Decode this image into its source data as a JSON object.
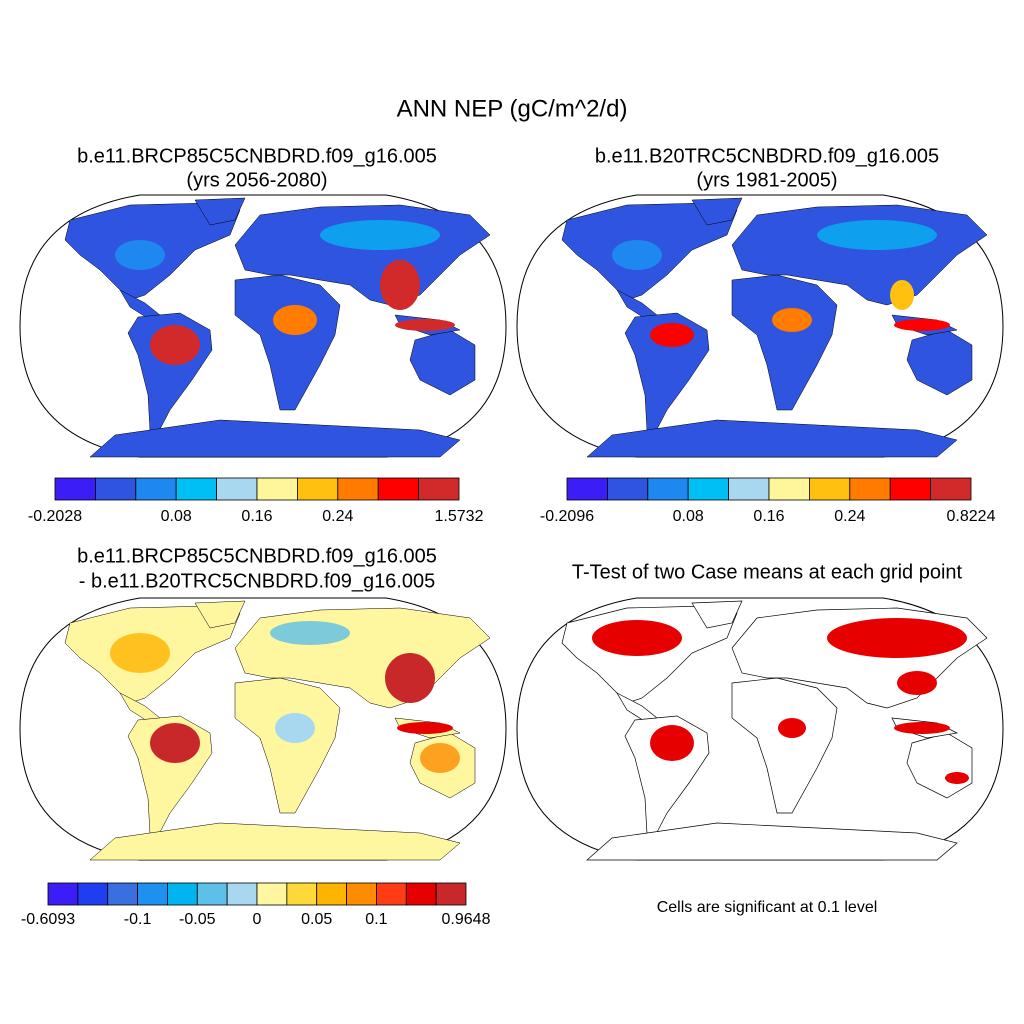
{
  "title": "ANN NEP (gC/m^2/d)",
  "panels": [
    {
      "title": [
        "b.e11.BRCP85C5CNBDRD.f09_g16.005",
        "(yrs 2056-2080)"
      ],
      "colorbar": {
        "colors": [
          "#3b1ef5",
          "#2f55e0",
          "#1e87f0",
          "#00bff5",
          "#a8d8ef",
          "#fff59a",
          "#ffc010",
          "#ff7c00",
          "#ff0000",
          "#d22a2a"
        ],
        "labels": [
          "-0.2028",
          null,
          null,
          "0.08",
          null,
          "0.16",
          null,
          "0.24",
          null,
          null,
          "1.5732"
        ]
      }
    },
    {
      "title": [
        "b.e11.B20TRC5CNBDRD.f09_g16.005",
        "(yrs 1981-2005)"
      ],
      "colorbar": {
        "colors": [
          "#3b1ef5",
          "#2f55e0",
          "#1e87f0",
          "#00bff5",
          "#a8d8ef",
          "#fff59a",
          "#ffc010",
          "#ff7c00",
          "#ff0000",
          "#d22a2a"
        ],
        "labels": [
          "-0.2096",
          null,
          null,
          "0.08",
          null,
          "0.16",
          null,
          "0.24",
          null,
          null,
          "0.8224"
        ]
      }
    },
    {
      "title": [
        "b.e11.BRCP85C5CNBDRD.f09_g16.005",
        "- b.e11.B20TRC5CNBDRD.f09_g16.005"
      ],
      "colorbar": {
        "colors": [
          "#3b1ef5",
          "#1f3ef2",
          "#3b6fe0",
          "#1e90f0",
          "#00b4f0",
          "#5cc0e8",
          "#a8d8ef",
          "#fff6a0",
          "#ffd83a",
          "#ffb400",
          "#ff8c00",
          "#ff3c14",
          "#e60000",
          "#c8282a"
        ],
        "labels": [
          "-0.6093",
          null,
          null,
          "-0.1",
          null,
          "-0.05",
          null,
          "0",
          null,
          "0.05",
          null,
          "0.1",
          null,
          null,
          "0.9648"
        ]
      }
    },
    {
      "title": [
        "T-Test of two Case means at each grid point"
      ],
      "note": "Cells are significant at 0.1 level"
    }
  ]
}
